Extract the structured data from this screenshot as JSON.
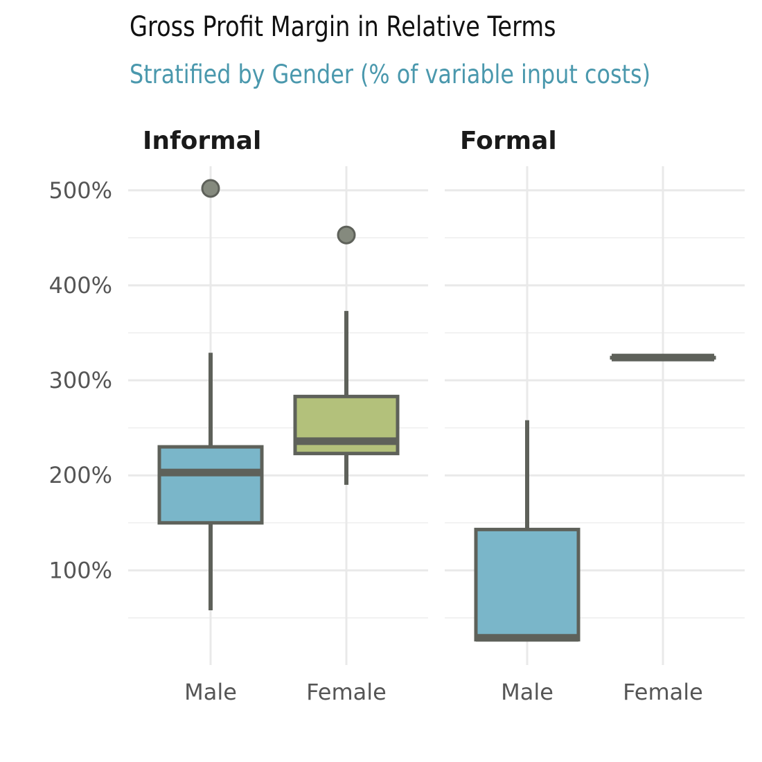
{
  "chart_data": {
    "type": "boxplot",
    "title": "Gross Profit Margin in Relative Terms",
    "subtitle": "Stratified by Gender (% of variable input costs)",
    "ylim": [
      0,
      520
    ],
    "yticks": [
      100,
      200,
      300,
      400,
      500
    ],
    "ytick_labels": [
      "100%",
      "200%",
      "300%",
      "400%",
      "500%"
    ],
    "grid": true,
    "colors": {
      "Male": "#7ab6c9",
      "Female": "#b3c17b",
      "outline": "#5e615a"
    },
    "panels": [
      {
        "name": "Informal",
        "categories": [
          "Male",
          "Female"
        ],
        "boxes": [
          {
            "category": "Male",
            "whisker_low": 58,
            "q1": 150,
            "median": 203,
            "q3": 230,
            "whisker_high": 329,
            "outliers": [
              502
            ]
          },
          {
            "category": "Female",
            "whisker_low": 190,
            "q1": 223,
            "median": 236,
            "q3": 283,
            "whisker_high": 373,
            "outliers": [
              453
            ]
          }
        ]
      },
      {
        "name": "Formal",
        "categories": [
          "Male",
          "Female"
        ],
        "boxes": [
          {
            "category": "Male",
            "whisker_low": 27,
            "q1": 27,
            "median": 29,
            "q3": 143,
            "whisker_high": 258,
            "outliers": []
          },
          {
            "category": "Female",
            "whisker_low": 324,
            "q1": 324,
            "median": 324,
            "q3": 324,
            "whisker_high": 324,
            "outliers": []
          }
        ]
      }
    ]
  }
}
